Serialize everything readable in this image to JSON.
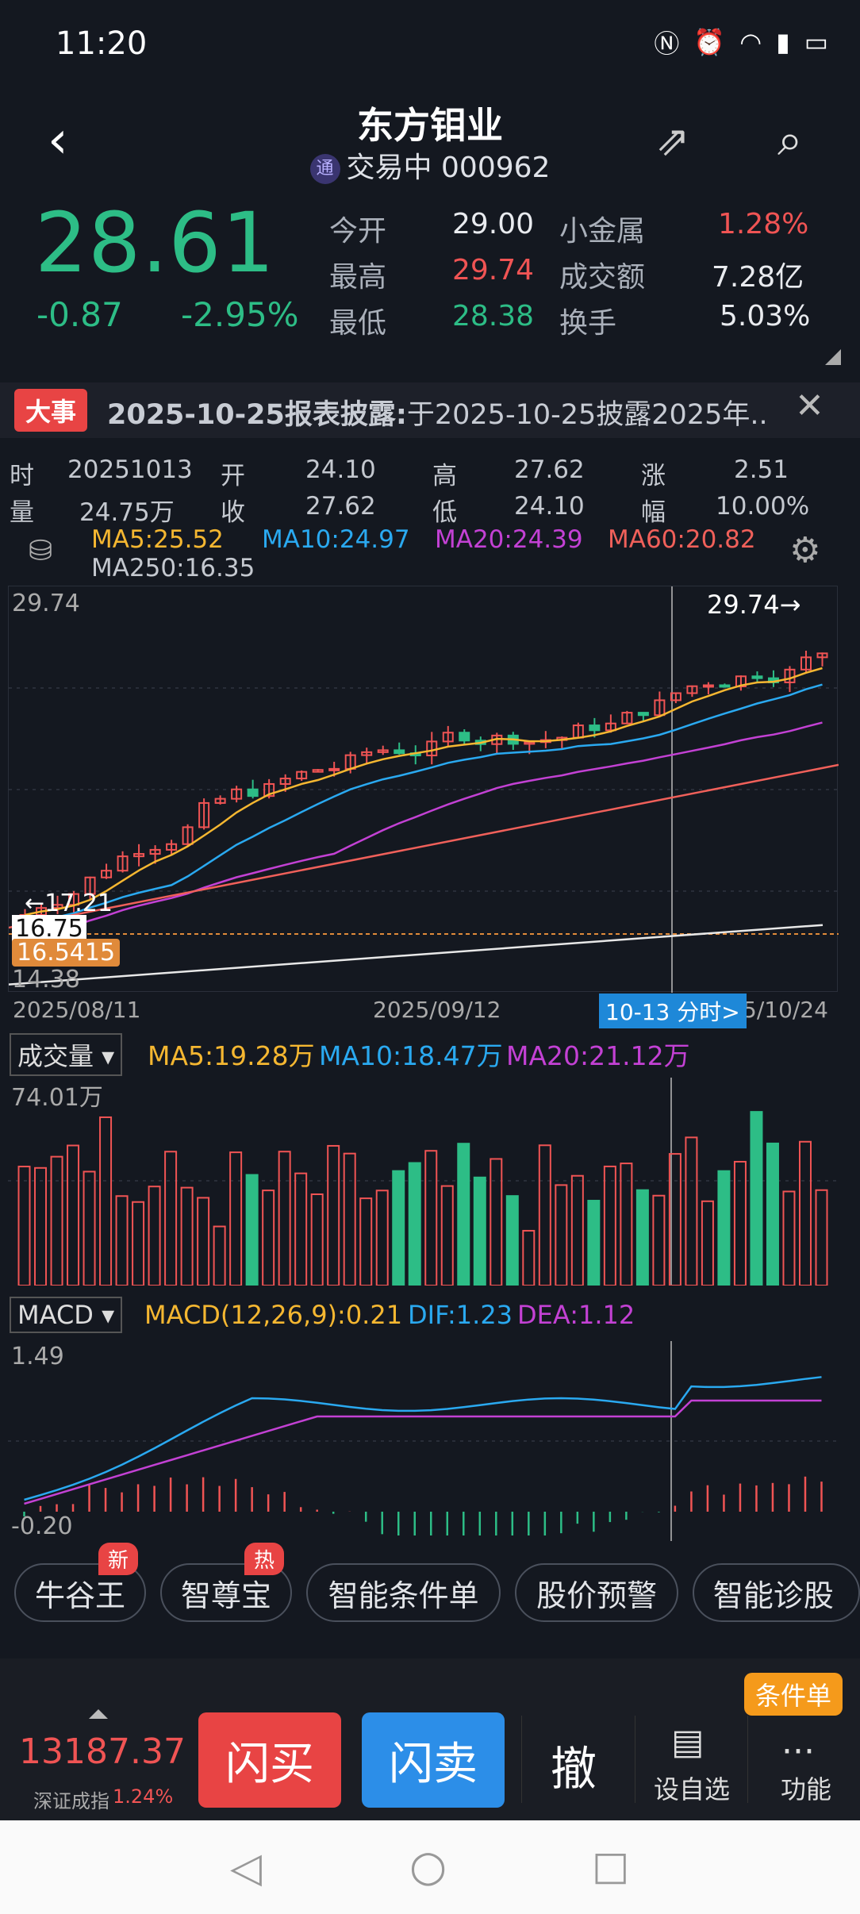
{
  "status": {
    "time": "11:20"
  },
  "header": {
    "name": "东方钼业",
    "state": "交易中",
    "code": "000962",
    "tong": "通"
  },
  "quote": {
    "price": "28.61",
    "change": "-0.87",
    "change_pct": "-2.95%",
    "rows": [
      {
        "k1": "今开",
        "v1": "29.00",
        "k2": "小金属",
        "v2": "1.28%"
      },
      {
        "k1": "最高",
        "v1": "29.74",
        "k2": "成交额",
        "v2": "7.28亿"
      },
      {
        "k1": "最低",
        "v1": "28.38",
        "k2": "换手",
        "v2": "5.03%"
      }
    ]
  },
  "event": {
    "tag": "大事",
    "title": "2025-10-25报表披露:",
    "text": "于2025-10-25披露2025年.."
  },
  "info": {
    "shi_label": "时",
    "shi": "20251013",
    "kai_label": "开",
    "kai": "24.10",
    "gao_label": "高",
    "gao": "27.62",
    "zhang_label": "涨",
    "zhang": "2.51",
    "liang_label": "量",
    "liang": "24.75万",
    "shou_label": "收",
    "shou": "27.62",
    "di_label": "低",
    "di": "24.10",
    "fu_label": "幅",
    "fu": "10.00%"
  },
  "ma": {
    "ma5": "MA5:25.52",
    "ma10": "MA10:24.97",
    "ma20": "MA20:24.39",
    "ma60": "MA60:20.82",
    "ma250": "MA250:16.35"
  },
  "kline": {
    "high": "29.74",
    "low": "14.38",
    "high_marker": "29.74→",
    "left_marker": "←17.21",
    "last_price": "16.75",
    "cost": "16.5415",
    "date_start": "2025/08/11",
    "date_mid": "2025/09/12",
    "date_end": "5/10/24",
    "cursor_label": "10-13 分时>"
  },
  "volume": {
    "label": "成交量 ▾",
    "ma5": "MA5:19.28万",
    "ma10": "MA10:18.47万",
    "ma20": "MA20:21.12万",
    "max": "74.01万"
  },
  "macd": {
    "label": "MACD ▾",
    "macd": "MACD(12,26,9):0.21",
    "dif": "DIF:1.23",
    "dea": "DEA:1.12",
    "max": "1.49",
    "min": "-0.20"
  },
  "buttons": [
    {
      "label": "牛谷王",
      "badge": "新"
    },
    {
      "label": "智尊宝",
      "badge": "热"
    },
    {
      "label": "智能条件单",
      "badge": ""
    },
    {
      "label": "股价预警",
      "badge": ""
    },
    {
      "label": "智能诊股",
      "badge": ""
    }
  ],
  "bottom": {
    "index_value": "13187.37",
    "index_name": "深证成指",
    "index_pct": "1.24%",
    "buy": "闪买",
    "sell": "闪卖",
    "cancel": "撤",
    "watch": "设自选",
    "more": "功能",
    "cond": "条件单"
  },
  "colors": {
    "up": "#f05454",
    "down": "#2dbd86",
    "ma5": "#f5b731",
    "ma10": "#2aa9f0",
    "ma20": "#c341d4",
    "ma60": "#f0605a",
    "ma250": "#e8e8e8"
  }
}
